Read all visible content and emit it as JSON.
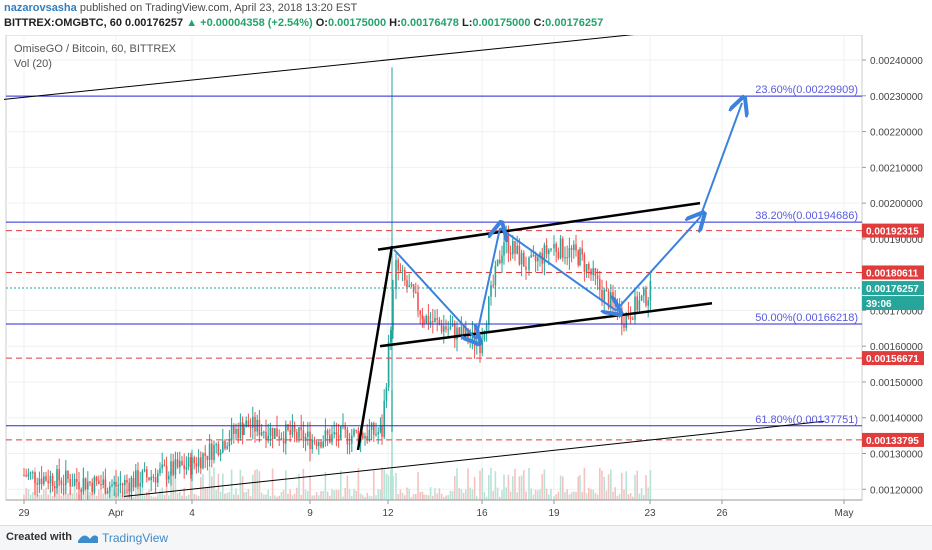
{
  "header": {
    "author": "nazarovsasha",
    "published_text": "published on TradingView.com, April 23, 2018 13:20 EST",
    "symbol_line": "BITTREX:OMGBTC, 60",
    "last": "0.00176257",
    "change": "▲ +0.00004358 (+2.54%)",
    "o_label": "O:",
    "o_value": "0.00175000",
    "h_label": "H:",
    "h_value": "0.00176478",
    "l_label": "L:",
    "l_value": "0.00175000",
    "c_label": "C:",
    "c_value": "0.00176257"
  },
  "legend": {
    "title": "OmiseGO / Bitcoin, 60, BITTREX",
    "vol": "Vol (20)"
  },
  "footer": {
    "created_with": "Created with",
    "brand": "TradingView"
  },
  "colors": {
    "fib_line": "#2a2ad6",
    "fib_text": "#5a5ae0",
    "red_level": "#e03c3c",
    "current_price": "#26a69a",
    "arrow": "#3c82dc",
    "trend": "#000000",
    "candle_up": "#26a69a",
    "candle_down": "#ef5350"
  },
  "chart_data": {
    "type": "candlestick",
    "y_ticks": [
      "0.00240000",
      "0.00230000",
      "0.00220000",
      "0.00210000",
      "0.00200000",
      "0.00190000",
      "0.00170000",
      "0.00160000",
      "0.00150000",
      "0.00140000",
      "0.00130000",
      "0.00120000"
    ],
    "ylim": [
      0.00117,
      0.00247
    ],
    "x_ticks": [
      "29",
      "Apr",
      "4",
      "9",
      "12",
      "16",
      "19",
      "23",
      "26",
      "May"
    ],
    "price_labels": [
      {
        "text": "0.00192315",
        "value": 0.00192315,
        "color": "red"
      },
      {
        "text": "0.00180611",
        "value": 0.00180611,
        "color": "red"
      },
      {
        "text": "0.00176257",
        "value": 0.00176257,
        "color": "green"
      },
      {
        "text": "39:06",
        "value": null,
        "color": "green"
      },
      {
        "text": "0.00156671",
        "value": 0.00156671,
        "color": "red"
      },
      {
        "text": "0.00133795",
        "value": 0.00133795,
        "color": "red"
      }
    ],
    "fib_levels": [
      {
        "label": "23.60%(0.00229909)",
        "value": 0.00229909
      },
      {
        "label": "38.20%(0.00194686)",
        "value": 0.00194686
      },
      {
        "label": "50.00%(0.00166218)",
        "value": 0.00166218
      },
      {
        "label": "61.80%(0.00137751)",
        "value": 0.00137751
      }
    ],
    "red_levels": [
      0.00192315,
      0.00180611,
      0.00156671,
      0.00133795
    ],
    "current_price": 0.00176257,
    "time_index_labels": {
      "29": 0,
      "Apr": 92,
      "4": 168,
      "9": 286,
      "12": 364,
      "16": 458,
      "19": 530,
      "23": 626,
      "26": 698,
      "May": 820
    },
    "candles_summary": [
      {
        "t": "29",
        "close": 0.00124
      },
      {
        "t": "Apr",
        "close": 0.00121
      },
      {
        "t": "4",
        "close": 0.00127
      },
      {
        "t": "6",
        "close": 0.00138
      },
      {
        "t": "9",
        "close": 0.00134
      },
      {
        "t": "12",
        "close": 0.00136
      },
      {
        "t": "12.5",
        "close": 0.00182
      },
      {
        "t": "14",
        "close": 0.00168
      },
      {
        "t": "16",
        "close": 0.00161
      },
      {
        "t": "17",
        "close": 0.0019
      },
      {
        "t": "18",
        "close": 0.00182
      },
      {
        "t": "19",
        "close": 0.00188
      },
      {
        "t": "20",
        "close": 0.00185
      },
      {
        "t": "21",
        "close": 0.00175
      },
      {
        "t": "22",
        "close": 0.00168
      },
      {
        "t": "23",
        "close": 0.00174
      },
      {
        "t": "23.5",
        "close": 0.00176
      }
    ],
    "projection_path_values": [
      0.00187,
      0.00162,
      0.00193,
      0.0017,
      0.00196,
      0.00228
    ]
  }
}
